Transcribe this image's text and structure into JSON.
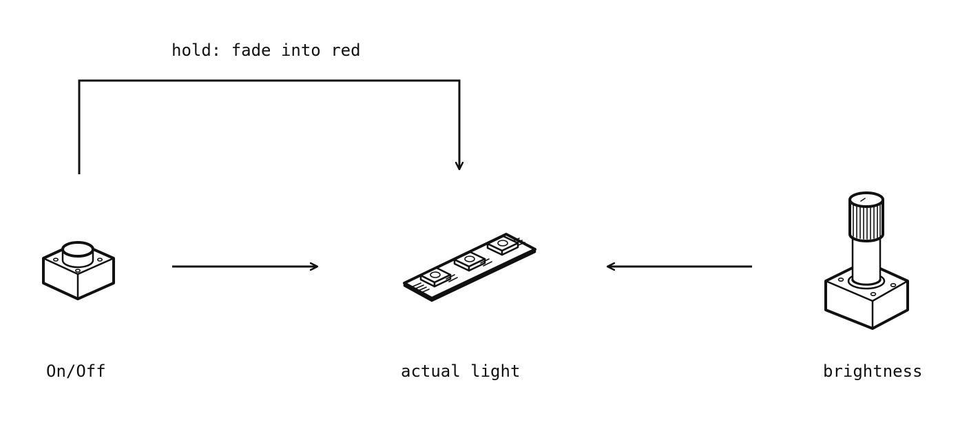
{
  "diagram": {
    "nodes": {
      "on_off": {
        "label": "On/Off",
        "icon": "push-button-icon"
      },
      "actual_light": {
        "label": "actual light",
        "icon": "led-strip-icon"
      },
      "brightness": {
        "label": "brightness",
        "icon": "potentiometer-icon"
      }
    },
    "edges": [
      {
        "from": "on_off",
        "to": "actual_light",
        "label": ""
      },
      {
        "from": "brightness",
        "to": "actual_light",
        "label": ""
      },
      {
        "from": "on_off",
        "to": "actual_light",
        "label": "hold: fade into red"
      }
    ],
    "colors": {
      "ink": "#111111",
      "background": "#ffffff"
    }
  }
}
